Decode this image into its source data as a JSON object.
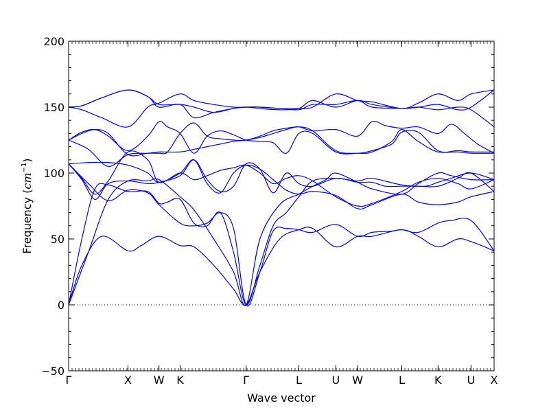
{
  "chart_data": {
    "type": "line",
    "title": "",
    "xlabel": "Wave vector",
    "ylabel": "Frequency",
    "ylabel_unit_base": "cm",
    "ylabel_unit_exp": "−1",
    "ylim": [
      -50,
      200
    ],
    "yticks": [
      "−50",
      "0",
      "50",
      "100",
      "150",
      "200"
    ],
    "ytick_values": [
      -50,
      0,
      50,
      100,
      150,
      200
    ],
    "xlim": [
      0,
      6.45
    ],
    "xticks": [
      {
        "label": "Γ",
        "x": 0.0
      },
      {
        "label": "X",
        "x": 0.9
      },
      {
        "label": "W",
        "x": 1.37
      },
      {
        "label": "K",
        "x": 1.69
      },
      {
        "label": "Γ",
        "x": 2.69
      },
      {
        "label": "L",
        "x": 3.49
      },
      {
        "label": "U",
        "x": 4.05
      },
      {
        "label": "W",
        "x": 4.38
      },
      {
        "label": "L",
        "x": 5.05
      },
      {
        "label": "K",
        "x": 5.6
      },
      {
        "label": "U",
        "x": 6.1
      },
      {
        "label": "X",
        "x": 6.45
      }
    ],
    "zero_line": true,
    "grid": false,
    "line_color": "#0000ff",
    "series": [
      {
        "x": [
          0,
          0.2,
          0.5,
          0.9,
          1.1,
          1.37,
          1.69,
          1.9,
          2.2,
          2.5,
          2.69,
          2.9,
          3.2,
          3.49,
          3.7,
          4.05,
          4.38,
          4.6,
          5.05,
          5.3,
          5.6,
          5.9,
          6.1,
          6.45
        ],
        "y": [
          0,
          30,
          52,
          41,
          45,
          52,
          45,
          44,
          30,
          12,
          0,
          25,
          50,
          57,
          58,
          44,
          52,
          52,
          57,
          52,
          44,
          50,
          48,
          41
        ]
      },
      {
        "x": [
          0,
          0.3,
          0.6,
          0.9,
          1.2,
          1.37,
          1.69,
          1.9,
          2.2,
          2.5,
          2.69,
          2.9,
          3.2,
          3.49,
          3.7,
          3.9,
          4.05,
          4.38,
          4.6,
          5.05,
          5.3,
          5.6,
          5.8,
          6.1,
          6.45
        ],
        "y": [
          0,
          40,
          80,
          94,
          94,
          95,
          82,
          72,
          50,
          25,
          0,
          50,
          76,
          84,
          90,
          95,
          100,
          93,
          88,
          84,
          92,
          100,
          98,
          95,
          95
        ]
      },
      {
        "x": [
          0,
          0.2,
          0.4,
          0.6,
          0.9,
          1.2,
          1.37,
          1.5,
          1.69,
          1.9,
          2.1,
          2.3,
          2.5,
          2.69,
          2.9,
          3.1,
          3.3,
          3.49,
          3.7,
          4.05,
          4.38,
          4.6,
          5.05,
          5.4,
          5.6,
          5.8,
          6.1,
          6.45
        ],
        "y": [
          0,
          50,
          88,
          91,
          86,
          86,
          77,
          78,
          80,
          62,
          60,
          70,
          40,
          0,
          30,
          60,
          70,
          82,
          94,
          96,
          94,
          96,
          91,
          90,
          93,
          96,
          100,
          95
        ]
      },
      {
        "x": [
          0,
          0.3,
          0.6,
          0.9,
          1.2,
          1.37,
          1.69,
          1.9,
          2.1,
          2.3,
          2.5,
          2.69,
          2.9,
          3.1,
          3.3,
          3.49,
          3.7,
          4.05,
          4.38,
          4.6,
          4.9,
          5.05,
          5.3,
          5.6,
          5.8,
          6.1,
          6.45
        ],
        "y": [
          107,
          92,
          79,
          87,
          85,
          76,
          62,
          60,
          62,
          70,
          58,
          0,
          25,
          56,
          58,
          57,
          55,
          61,
          52,
          55,
          56,
          57,
          55,
          62,
          64,
          64,
          41
        ]
      },
      {
        "x": [
          0,
          0.2,
          0.4,
          0.6,
          0.9,
          1.2,
          1.37,
          1.69,
          1.9,
          2.1,
          2.3,
          2.5,
          2.69,
          2.9,
          3.1,
          3.3,
          3.49,
          3.7,
          4.05,
          4.38,
          4.6,
          4.8,
          5.05,
          5.3,
          5.6,
          5.9,
          6.1,
          6.45
        ],
        "y": [
          107,
          95,
          80,
          92,
          94,
          92,
          93,
          98,
          110,
          95,
          86,
          90,
          107,
          103,
          85,
          100,
          92,
          90,
          96,
          93,
          93,
          90,
          90,
          90,
          90,
          96,
          100,
          86
        ]
      },
      {
        "x": [
          0,
          0.3,
          0.6,
          0.9,
          1.2,
          1.37,
          1.69,
          1.9,
          2.1,
          2.3,
          2.5,
          2.69,
          2.9,
          3.1,
          3.3,
          3.49,
          3.7,
          4.05,
          4.38,
          4.6,
          5.05,
          5.3,
          5.6,
          5.9,
          6.1,
          6.45
        ],
        "y": [
          107,
          108,
          108,
          106,
          100,
          93,
          100,
          110,
          92,
          85,
          100,
          106,
          103,
          95,
          87,
          84,
          86,
          83,
          73,
          76,
          84,
          78,
          76,
          78,
          82,
          86
        ]
      },
      {
        "x": [
          0,
          0.2,
          0.4,
          0.6,
          0.9,
          1.2,
          1.37,
          1.69,
          1.9,
          2.1,
          2.3,
          2.5,
          2.69,
          2.9,
          3.1,
          3.3,
          3.49,
          3.7,
          4.05,
          4.38,
          4.6,
          5.05,
          5.3,
          5.6,
          5.9,
          6.1,
          6.45
        ],
        "y": [
          107,
          96,
          84,
          94,
          116,
          110,
          93,
          100,
          95,
          98,
          102,
          104,
          106,
          100,
          92,
          96,
          98,
          94,
          82,
          75,
          77,
          86,
          93,
          96,
          92,
          88,
          95
        ]
      },
      {
        "x": [
          0,
          0.3,
          0.6,
          0.9,
          1.2,
          1.37,
          1.69,
          1.9,
          2.1,
          2.3,
          2.5,
          2.69,
          2.9,
          3.1,
          3.3,
          3.49,
          3.7,
          4.05,
          4.38,
          4.6,
          4.9,
          5.05,
          5.3,
          5.6,
          5.9,
          6.1,
          6.45
        ],
        "y": [
          125,
          118,
          105,
          114,
          115,
          116,
          116,
          118,
          120,
          122,
          124,
          125,
          127,
          130,
          133,
          135,
          132,
          117,
          115,
          116,
          124,
          133,
          124,
          116,
          117,
          116,
          116
        ]
      },
      {
        "x": [
          0,
          0.2,
          0.4,
          0.6,
          0.9,
          1.2,
          1.37,
          1.5,
          1.69,
          1.9,
          2.1,
          2.3,
          2.5,
          2.69,
          2.9,
          3.1,
          3.3,
          3.49,
          3.7,
          4.05,
          4.38,
          4.6,
          4.9,
          5.05,
          5.3,
          5.6,
          5.9,
          6.1,
          6.45
        ],
        "y": [
          125,
          131,
          133,
          128,
          117,
          128,
          139,
          135,
          130,
          115,
          128,
          132,
          129,
          125,
          124,
          123,
          115,
          130,
          130,
          116,
          115,
          117,
          122,
          131,
          131,
          117,
          116,
          115,
          115
        ]
      },
      {
        "x": [
          0,
          0.2,
          0.4,
          0.6,
          0.9,
          1.2,
          1.37,
          1.5,
          1.69,
          1.9,
          2.1,
          2.3,
          2.5,
          2.69,
          2.9,
          3.1,
          3.3,
          3.49,
          3.7,
          4.05,
          4.38,
          4.6,
          4.8,
          5.05,
          5.3,
          5.6,
          5.8,
          6.0,
          6.2,
          6.45
        ],
        "y": [
          125,
          130,
          133,
          130,
          114,
          115,
          115,
          116,
          130,
          138,
          128,
          126,
          125,
          125,
          128,
          132,
          134,
          135,
          132,
          133,
          128,
          139,
          136,
          134,
          135,
          130,
          137,
          130,
          122,
          115
        ]
      },
      {
        "x": [
          0,
          0.2,
          0.5,
          0.9,
          1.2,
          1.37,
          1.69,
          1.9,
          2.2,
          2.5,
          2.69,
          2.9,
          3.2,
          3.49,
          3.7,
          4.05,
          4.38,
          4.6,
          5.05,
          5.3,
          5.6,
          5.9,
          6.1,
          6.45
        ],
        "y": [
          150,
          151,
          157,
          163,
          158,
          150,
          152,
          142,
          146,
          149,
          150,
          150,
          149,
          149,
          150,
          160,
          155,
          154,
          149,
          153,
          160,
          155,
          160,
          163
        ]
      },
      {
        "x": [
          0,
          0.2,
          0.5,
          0.9,
          1.2,
          1.37,
          1.69,
          1.9,
          2.2,
          2.5,
          2.69,
          2.9,
          3.2,
          3.49,
          3.7,
          4.05,
          4.38,
          4.6,
          5.05,
          5.3,
          5.6,
          5.9,
          6.1,
          6.45
        ],
        "y": [
          150,
          148,
          142,
          135,
          150,
          153,
          160,
          155,
          152,
          150,
          150,
          150,
          149,
          148,
          152,
          152,
          155,
          150,
          149,
          150,
          148,
          150,
          148,
          135
        ]
      },
      {
        "x": [
          0,
          0.2,
          0.5,
          0.9,
          1.2,
          1.37,
          1.69,
          1.9,
          2.2,
          2.5,
          2.69,
          2.9,
          3.2,
          3.49,
          3.7,
          4.05,
          4.38,
          4.6,
          5.05,
          5.3,
          5.6,
          5.9,
          6.1,
          6.45
        ],
        "y": [
          150,
          151,
          157,
          163,
          158,
          152,
          152,
          150,
          146,
          149,
          150,
          149,
          148,
          149,
          155,
          150,
          155,
          152,
          149,
          150,
          152,
          148,
          150,
          163
        ]
      }
    ]
  }
}
